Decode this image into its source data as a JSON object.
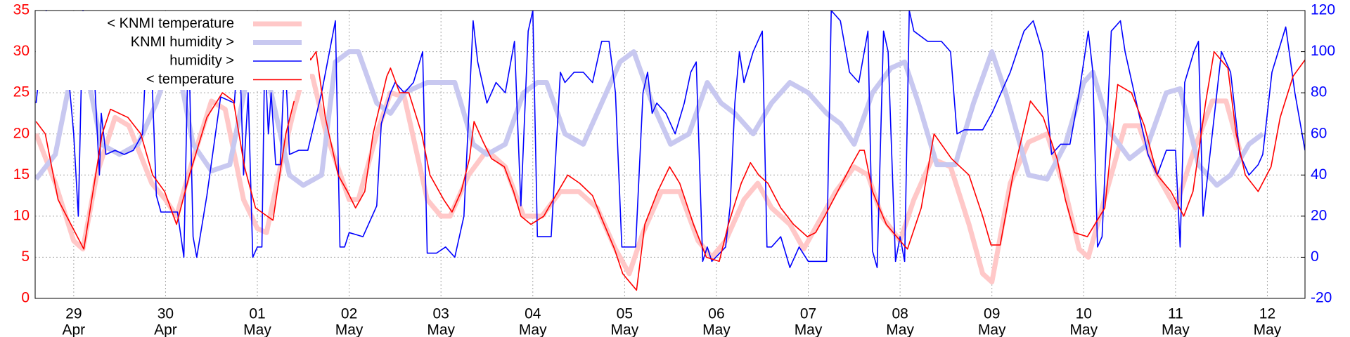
{
  "chart_data": {
    "type": "line",
    "grid": true,
    "legend": "upper left",
    "xlim": [
      -0.42,
      13.41
    ],
    "xticks": [
      {
        "value": 0,
        "label": "29"
      },
      {
        "value": 1,
        "label": "30"
      },
      {
        "value": 2,
        "label": "01"
      },
      {
        "value": 3,
        "label": "02"
      },
      {
        "value": 4,
        "label": "03"
      },
      {
        "value": 5,
        "label": "04"
      },
      {
        "value": 6,
        "label": "05"
      },
      {
        "value": 7,
        "label": "06"
      },
      {
        "value": 8,
        "label": "07"
      },
      {
        "value": 9,
        "label": "08"
      },
      {
        "value": 10,
        "label": "09"
      },
      {
        "value": 11,
        "label": "10"
      },
      {
        "value": 12,
        "label": "11"
      },
      {
        "value": 13,
        "label": "12"
      }
    ],
    "xtick_months": [
      "Apr",
      "Apr",
      "May",
      "May",
      "May",
      "May",
      "May",
      "May",
      "May",
      "May",
      "May",
      "May",
      "May",
      "May"
    ],
    "ylim": [
      0,
      35
    ],
    "yticks": [
      0,
      5,
      10,
      15,
      20,
      25,
      30,
      35
    ],
    "ycolor": "#ff0000",
    "y2lim": [
      -20,
      120
    ],
    "y2ticks": [
      -20,
      0,
      20,
      40,
      60,
      80,
      100,
      120
    ],
    "y2color": "#0000ff",
    "series": [
      {
        "name": "< KNMI temperature",
        "color": "#ffc8c8",
        "axis": "y",
        "x": [
          -0.41,
          -0.2,
          0,
          0.1,
          0.25,
          0.45,
          0.6,
          0.85,
          1,
          1.12,
          1.3,
          1.5,
          1.65,
          1.85,
          2,
          2.1,
          2.25,
          2.4,
          2.5,
          2.6,
          2.75,
          3,
          3.1,
          3.3,
          3.45,
          3.6,
          3.85,
          4,
          4.1,
          4.3,
          4.5,
          4.7,
          4.9,
          5,
          5.1,
          5.3,
          5.5,
          5.7,
          5.9,
          6.05,
          6.2,
          6.4,
          6.6,
          6.8,
          6.95,
          7.1,
          7.3,
          7.45,
          7.6,
          7.8,
          7.95,
          8.1,
          8.3,
          8.5,
          8.65,
          8.8,
          9,
          9.15,
          9.35,
          9.55,
          9.75,
          9.9,
          10,
          10.2,
          10.4,
          10.6,
          10.8,
          10.95,
          11.05,
          11.25,
          11.45,
          11.6,
          11.8,
          12,
          12.2,
          12.4,
          12.55,
          12.7
        ],
        "values": [
          20,
          14,
          7,
          6,
          15,
          22,
          21,
          14,
          12,
          10,
          17,
          24,
          23,
          12,
          8.5,
          8,
          16,
          23,
          27,
          27,
          20,
          12,
          12,
          20,
          25,
          24.5,
          12,
          10,
          10,
          15,
          18,
          16,
          10,
          10,
          10,
          13,
          13,
          11,
          6,
          3,
          8,
          13,
          13,
          7,
          5,
          7,
          12,
          14,
          11,
          9,
          6,
          9,
          13,
          16,
          15,
          10,
          7,
          12,
          17,
          16,
          9,
          3,
          2,
          14,
          19,
          20,
          13,
          6,
          5,
          13,
          21,
          21,
          15,
          11,
          18,
          24,
          24,
          18
        ]
      },
      {
        "name": "KNMI humidity >",
        "color": "#c8c8f0",
        "axis": "y2",
        "x": [
          -0.41,
          -0.2,
          0,
          0.1,
          0.3,
          0.5,
          0.7,
          0.9,
          1.05,
          1.15,
          1.3,
          1.5,
          1.7,
          1.9,
          2.05,
          2.2,
          2.35,
          2.5,
          2.7,
          2.85,
          3,
          3.1,
          3.3,
          3.45,
          3.6,
          3.85,
          4,
          4.15,
          4.35,
          4.5,
          4.7,
          4.9,
          5.05,
          5.15,
          5.35,
          5.55,
          5.75,
          5.95,
          6.1,
          6.3,
          6.5,
          6.7,
          6.9,
          7.05,
          7.2,
          7.4,
          7.6,
          7.8,
          8,
          8.2,
          8.35,
          8.5,
          8.7,
          8.9,
          9.05,
          9.2,
          9.4,
          9.6,
          9.8,
          10,
          10.15,
          10.4,
          10.6,
          10.8,
          11,
          11.1,
          11.3,
          11.5,
          11.7,
          11.9,
          12.05,
          12.25,
          12.45,
          12.6,
          12.8,
          12.95
        ],
        "values": [
          38,
          50,
          95,
          100,
          55,
          50,
          55,
          75,
          95,
          90,
          55,
          42,
          45,
          90,
          100,
          70,
          40,
          35,
          40,
          95,
          100,
          100,
          75,
          70,
          80,
          85,
          85,
          85,
          55,
          50,
          55,
          80,
          85,
          85,
          60,
          55,
          75,
          95,
          100,
          75,
          55,
          60,
          85,
          75,
          70,
          60,
          75,
          85,
          80,
          70,
          65,
          55,
          80,
          92,
          95,
          75,
          45,
          45,
          75,
          100,
          80,
          40,
          38,
          55,
          85,
          90,
          60,
          48,
          55,
          80,
          82,
          45,
          35,
          40,
          55,
          60
        ]
      },
      {
        "name": "humidity >",
        "color": "#0000ff",
        "axis": "y2",
        "x": [
          -0.41,
          -0.3,
          -0.2,
          -0.1,
          0,
          0.05,
          0.1,
          0.2,
          0.28,
          0.3,
          0.35,
          0.45,
          0.55,
          0.65,
          0.75,
          0.8,
          0.85,
          0.9,
          0.95,
          1.05,
          1.13,
          1.2,
          1.25,
          1.3,
          1.34,
          1.45,
          1.6,
          1.75,
          1.8,
          1.85,
          1.9,
          1.95,
          2,
          2.05,
          2.08,
          2.12,
          2.15,
          2.2,
          2.25,
          2.3,
          2.35,
          2.45,
          2.55,
          2.7,
          2.85,
          2.9,
          2.95,
          3,
          3.15,
          3.3,
          3.35,
          3.45,
          3.5,
          3.6,
          3.7,
          3.8,
          3.85,
          3.95,
          4.05,
          4.15,
          4.25,
          4.35,
          4.4,
          4.5,
          4.6,
          4.7,
          4.8,
          4.87,
          4.95,
          5,
          5.05,
          5.1,
          5.2,
          5.3,
          5.35,
          5.45,
          5.55,
          5.65,
          5.75,
          5.83,
          5.9,
          5.97,
          6.05,
          6.12,
          6.2,
          6.25,
          6.3,
          6.35,
          6.45,
          6.55,
          6.65,
          6.72,
          6.78,
          6.85,
          6.9,
          6.95,
          7.1,
          7.15,
          7.2,
          7.25,
          7.3,
          7.4,
          7.5,
          7.55,
          7.6,
          7.7,
          7.8,
          7.9,
          8,
          8.1,
          8.2,
          8.25,
          8.35,
          8.45,
          8.55,
          8.65,
          8.7,
          8.75,
          8.82,
          8.87,
          8.95,
          9,
          9.05,
          9.1,
          9.15,
          9.3,
          9.45,
          9.55,
          9.62,
          9.7,
          9.8,
          9.9,
          10,
          10.2,
          10.35,
          10.45,
          10.55,
          10.65,
          10.75,
          10.85,
          10.95,
          11.05,
          11.1,
          11.15,
          11.2,
          11.3,
          11.4,
          11.45,
          11.55,
          11.7,
          11.8,
          11.9,
          12,
          12.05,
          12.1,
          12.2,
          12.25,
          12.3,
          12.35,
          12.5,
          12.6,
          12.7,
          12.8,
          12.9,
          12.95,
          13.05,
          13.2,
          13.3,
          13.41
        ],
        "values": [
          75,
          120,
          95,
          110,
          60,
          20,
          120,
          110,
          40,
          70,
          50,
          52,
          50,
          52,
          60,
          110,
          90,
          30,
          22,
          22,
          22,
          0,
          110,
          10,
          0,
          30,
          78,
          75,
          110,
          40,
          80,
          0,
          5,
          5,
          100,
          60,
          80,
          45,
          45,
          100,
          50,
          52,
          52,
          80,
          115,
          5,
          5,
          12,
          10,
          25,
          65,
          80,
          85,
          80,
          85,
          100,
          2,
          2,
          5,
          0,
          20,
          115,
          95,
          75,
          85,
          80,
          105,
          25,
          110,
          120,
          10,
          10,
          10,
          90,
          85,
          90,
          90,
          85,
          105,
          105,
          80,
          5,
          5,
          5,
          80,
          90,
          70,
          75,
          70,
          60,
          75,
          90,
          95,
          -2,
          5,
          -2,
          5,
          25,
          75,
          100,
          85,
          100,
          110,
          5,
          5,
          10,
          -5,
          5,
          -2,
          -2,
          -2,
          120,
          115,
          90,
          85,
          110,
          3,
          -5,
          110,
          100,
          -2,
          10,
          -2,
          120,
          110,
          105,
          105,
          100,
          60,
          62,
          62,
          62,
          70,
          90,
          110,
          115,
          100,
          50,
          55,
          55,
          80,
          110,
          90,
          5,
          10,
          110,
          115,
          100,
          80,
          50,
          40,
          52,
          52,
          5,
          85,
          100,
          105,
          20,
          40,
          100,
          90,
          50,
          40,
          45,
          50,
          90,
          112,
          80,
          52
        ]
      },
      {
        "name": "< temperature",
        "color": "#ff0000",
        "axis": "y",
        "x": [
          -0.41,
          -0.31,
          -0.17,
          -0.03,
          0.11,
          0.21,
          0.31,
          0.4,
          0.59,
          0.73,
          0.86,
          0.99,
          1.12,
          1.26,
          1.45,
          1.62,
          1.74,
          1.86,
          1.98,
          2.17,
          2.31,
          2.4,
          2.45,
          2.52,
          2.58,
          2.64,
          2.74,
          2.88,
          2.98,
          3.07,
          3.17,
          3.26,
          3.41,
          3.45,
          3.55,
          3.65,
          3.79,
          3.88,
          4.03,
          4.12,
          4.22,
          4.31,
          4.36,
          4.46,
          4.55,
          4.69,
          4.79,
          4.87,
          4.98,
          5.12,
          5.17,
          5.38,
          5.51,
          5.65,
          5.74,
          5.89,
          5.98,
          6.13,
          6.22,
          6.36,
          6.49,
          6.6,
          6.75,
          6.89,
          7.03,
          7.13,
          7.27,
          7.37,
          7.46,
          7.56,
          7.7,
          7.84,
          7.99,
          8.08,
          8.18,
          8.32,
          8.46,
          8.56,
          8.61,
          8.7,
          8.85,
          9.04,
          9.08,
          9.23,
          9.37,
          9.56,
          9.75,
          9.9,
          9.99,
          10.09,
          10.23,
          10.42,
          10.56,
          10.71,
          10.8,
          10.9,
          11.04,
          11.23,
          11.37,
          11.52,
          11.66,
          11.8,
          11.95,
          12.09,
          12.19,
          12.33,
          12.42,
          12.57,
          12.66,
          12.76,
          12.9,
          13.04,
          13.14,
          13.28,
          13.41
        ],
        "values": [
          21.5,
          20,
          12,
          9,
          6,
          13,
          20,
          23,
          22,
          20,
          15,
          13,
          9,
          15,
          22,
          25,
          24,
          16,
          11,
          9.5,
          20,
          24,
          null,
          30.5,
          29,
          30,
          22,
          15,
          13,
          11,
          13,
          20,
          27,
          28,
          25,
          25,
          20,
          15,
          12,
          10.5,
          13,
          17,
          21.5,
          19,
          17,
          16,
          13,
          10,
          9,
          10,
          11,
          15,
          14,
          12.5,
          10,
          6,
          3,
          1,
          9,
          13,
          16,
          14,
          9,
          5,
          4.5,
          9,
          14,
          16.5,
          15,
          14,
          11,
          9,
          7.5,
          8,
          10,
          13,
          16,
          18,
          18,
          13,
          9,
          6.5,
          6,
          11,
          20,
          17,
          15,
          10,
          6.5,
          6.5,
          15,
          24,
          22,
          17,
          12,
          8,
          7.5,
          11,
          26,
          25,
          21,
          15,
          13,
          10,
          13,
          24,
          30,
          28,
          20,
          15,
          13,
          16,
          22,
          27,
          29
        ]
      }
    ]
  }
}
